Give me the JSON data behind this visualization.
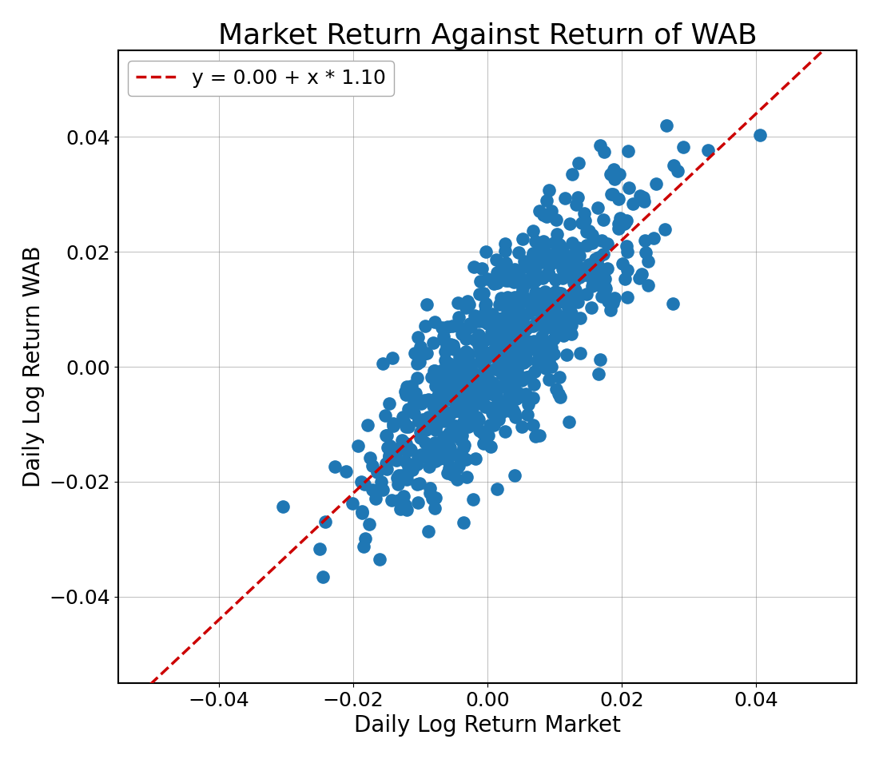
{
  "title": "Market Return Against Return of WAB",
  "xlabel": "Daily Log Return Market",
  "ylabel": "Daily Log Return WAB",
  "intercept": 0.0,
  "slope": 1.1,
  "legend_label": "y = 0.00 + x * 1.10",
  "scatter_color": "#1f77b4",
  "line_color": "#cc0000",
  "xlim": [
    -0.055,
    0.055
  ],
  "ylim": [
    -0.055,
    0.055
  ],
  "xticks": [
    -0.04,
    -0.02,
    0.0,
    0.02,
    0.04
  ],
  "yticks": [
    -0.04,
    -0.02,
    0.0,
    0.02,
    0.04
  ],
  "seed": 42,
  "n_points": 800,
  "market_std": 0.01,
  "noise_std": 0.008,
  "marker_size": 120,
  "alpha": 1.0,
  "title_fontsize": 26,
  "label_fontsize": 20,
  "tick_fontsize": 18,
  "legend_fontsize": 18,
  "figwidth": 11.0,
  "figheight": 9.5,
  "figdpi": 100
}
